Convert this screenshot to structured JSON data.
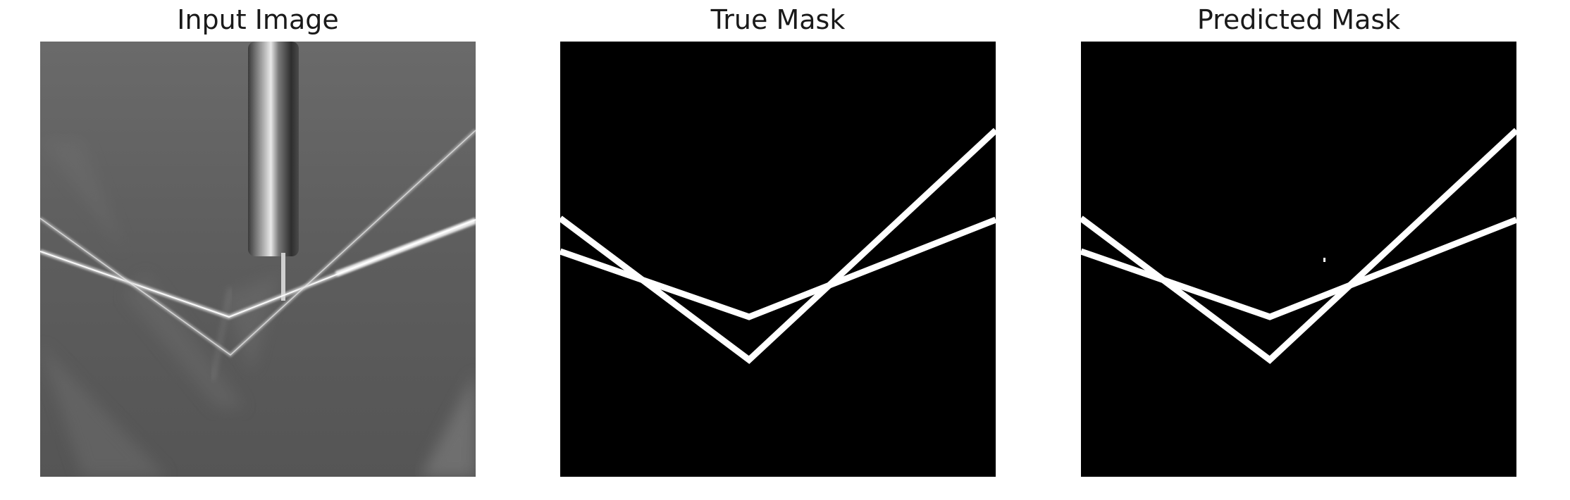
{
  "figure": {
    "panels": [
      {
        "title": "Input Image"
      },
      {
        "title": "True Mask"
      },
      {
        "title": "Predicted Mask"
      }
    ]
  },
  "colors": {
    "mask_background": "#000000",
    "mask_foreground": "#ffffff",
    "input_background": "#5f5f5f"
  }
}
